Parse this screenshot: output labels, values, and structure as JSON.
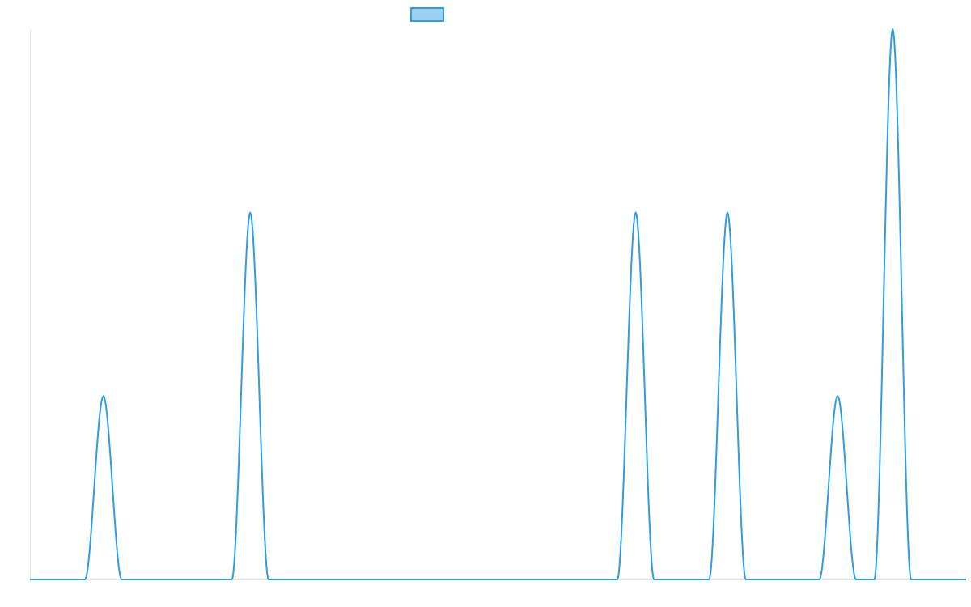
{
  "chart_data": {
    "type": "line",
    "title": "",
    "xlabel": "",
    "ylabel": "",
    "legend": {
      "position": "top-center",
      "entries": [
        ""
      ]
    },
    "grid": false,
    "xlim": [
      0,
      51
    ],
    "ylim": [
      0,
      3
    ],
    "x": [
      0,
      1,
      2,
      3,
      4,
      5,
      6,
      7,
      8,
      9,
      10,
      11,
      12,
      13,
      14,
      15,
      16,
      17,
      18,
      19,
      20,
      21,
      22,
      23,
      24,
      25,
      26,
      27,
      28,
      29,
      30,
      31,
      32,
      33,
      34,
      35,
      36,
      37,
      38,
      39,
      40,
      41,
      42,
      43,
      44,
      45,
      46,
      47,
      48,
      49,
      50,
      51
    ],
    "series": [
      {
        "values": [
          0,
          0,
          0,
          0,
          1,
          0,
          0,
          0,
          0,
          0,
          0,
          0,
          2,
          0,
          0,
          0,
          0,
          0,
          0,
          0,
          0,
          0,
          0,
          0,
          0,
          0,
          0,
          0,
          0,
          0,
          0,
          0,
          0,
          2,
          0,
          0,
          0,
          0,
          2,
          0,
          0,
          0,
          0,
          0,
          1,
          0,
          0,
          3,
          0,
          0,
          0,
          0
        ],
        "color": "#2f9de0",
        "fill": "#9dd0f3"
      }
    ]
  }
}
